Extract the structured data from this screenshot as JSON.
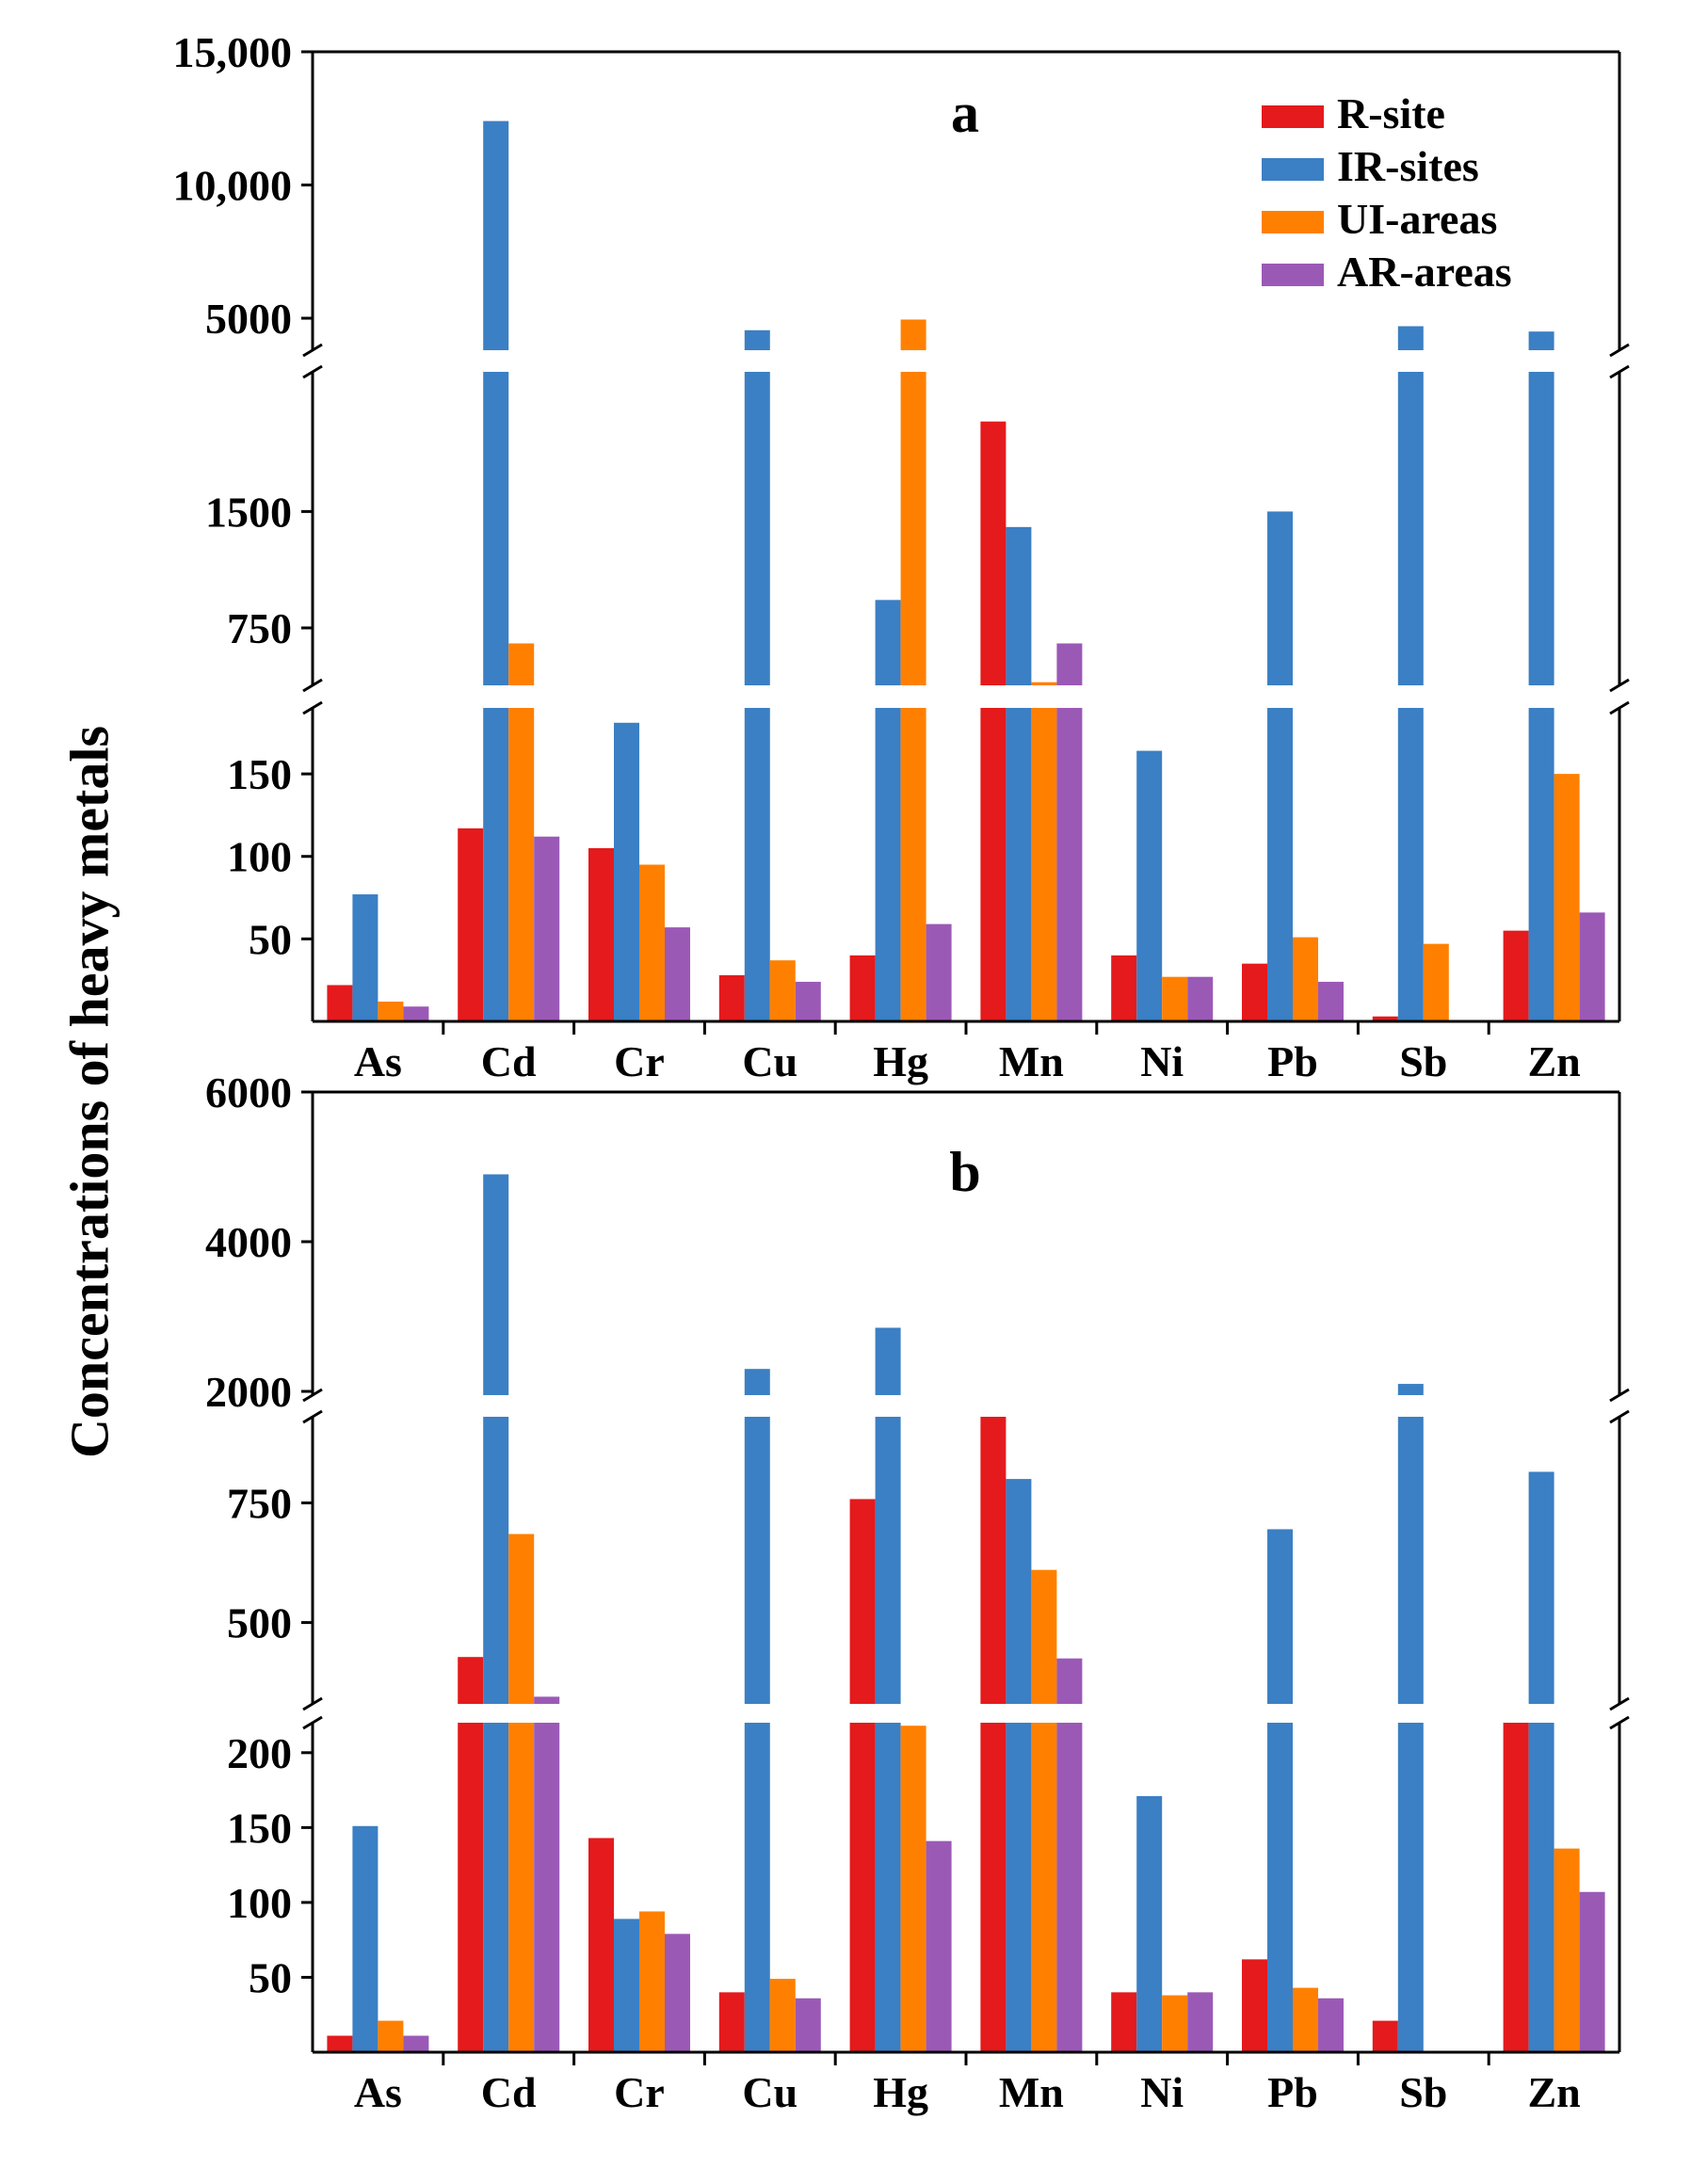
{
  "figure": {
    "ylabel": "Concentrations of heavy metals"
  },
  "legend": {
    "position": "top-right",
    "items": [
      {
        "label": "R-site",
        "color": "#e41a1c"
      },
      {
        "label": "IR-sites",
        "color": "#3b7fc4"
      },
      {
        "label": "UI-areas",
        "color": "#ff8000"
      },
      {
        "label": "AR-areas",
        "color": "#9b59b6"
      }
    ]
  },
  "chart_data": [
    {
      "type": "bar",
      "panel_label": "a",
      "categories": [
        "As",
        "Cd",
        "Cr",
        "Cu",
        "Hg",
        "Mn",
        "Ni",
        "Pb",
        "Sb",
        "Zn"
      ],
      "series": [
        {
          "name": "R-site",
          "values": [
            22,
            117,
            105,
            28,
            40,
            2080,
            40,
            35,
            3,
            55
          ]
        },
        {
          "name": "IR-sites",
          "values": [
            77,
            12400,
            181,
            4550,
            930,
            1400,
            164,
            1500,
            4700,
            4500
          ]
        },
        {
          "name": "UI-areas",
          "values": [
            12,
            650,
            95,
            37,
            4950,
            400,
            27,
            51,
            47,
            150
          ]
        },
        {
          "name": "AR-areas",
          "values": [
            9,
            112,
            57,
            24,
            59,
            650,
            27,
            24,
            0,
            66
          ]
        }
      ],
      "yaxis_segments": [
        {
          "range": [
            0,
            190
          ],
          "ticks": [
            50,
            100,
            150
          ],
          "tick_labels": [
            "50",
            "100",
            "150"
          ]
        },
        {
          "range": [
            380,
            2400
          ],
          "ticks": [
            750,
            1500
          ],
          "tick_labels": [
            "750",
            "1500"
          ]
        },
        {
          "range": [
            3800,
            15000
          ],
          "ticks": [
            5000,
            10000,
            15000
          ],
          "tick_labels": [
            "5000",
            "10,000",
            "15,000"
          ]
        }
      ],
      "ylabel": "Concentrations of heavy metals",
      "axis_breaks": true,
      "grid": false
    },
    {
      "type": "bar",
      "panel_label": "b",
      "categories": [
        "As",
        "Cd",
        "Cr",
        "Cu",
        "Hg",
        "Mn",
        "Ni",
        "Pb",
        "Sb",
        "Zn"
      ],
      "series": [
        {
          "name": "R-site",
          "values": [
            11,
            428,
            143,
            40,
            758,
            1950,
            40,
            62,
            21,
            220
          ]
        },
        {
          "name": "IR-sites",
          "values": [
            151,
            4900,
            89,
            2300,
            2850,
            800,
            171,
            695,
            2100,
            815
          ]
        },
        {
          "name": "UI-areas",
          "values": [
            21,
            685,
            94,
            49,
            218,
            610,
            38,
            43,
            0,
            136
          ]
        },
        {
          "name": "AR-areas",
          "values": [
            11,
            345,
            79,
            36,
            141,
            425,
            40,
            36,
            0,
            107
          ]
        }
      ],
      "yaxis_segments": [
        {
          "range": [
            0,
            220
          ],
          "ticks": [
            50,
            100,
            150,
            200
          ],
          "tick_labels": [
            "50",
            "100",
            "150",
            "200"
          ]
        },
        {
          "range": [
            330,
            930
          ],
          "ticks": [
            500,
            750
          ],
          "tick_labels": [
            "500",
            "750"
          ]
        },
        {
          "range": [
            1950,
            6000
          ],
          "ticks": [
            2000,
            4000,
            6000
          ],
          "tick_labels": [
            "2000",
            "4000",
            "6000"
          ]
        }
      ],
      "ylabel": "Concentrations of heavy metals",
      "axis_breaks": true,
      "grid": false
    }
  ]
}
